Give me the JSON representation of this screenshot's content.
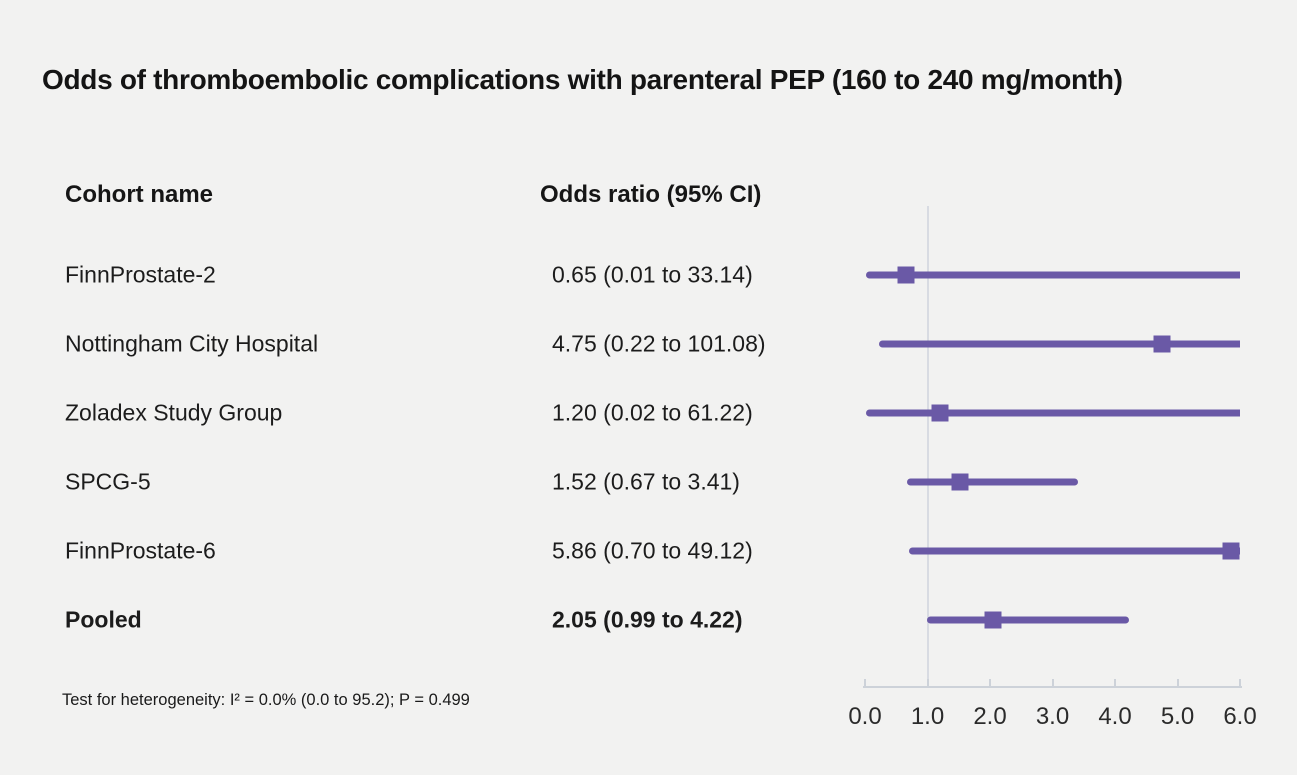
{
  "title": "Odds of thromboembolic complications with parenteral PEP (160 to 240 mg/month)",
  "columns": {
    "cohort": "Cohort name",
    "odds_ratio": "Odds ratio (95% CI)"
  },
  "footnote": "Test for heterogeneity: I² = 0.0% (0.0 to 95.2); P = 0.499",
  "colors": {
    "marker_purple": "#6a59a6",
    "refline_gray": "#d8dbe2",
    "axis_gray": "#cdd2d9",
    "background": "#f2f2f1",
    "text": "#191919"
  },
  "chart_data": {
    "type": "scatter",
    "subtype": "forest-plot",
    "title": "Odds of thromboembolic complications with parenteral PEP (160 to 240 mg/month)",
    "xlabel": "Odds ratio",
    "xlim": [
      0.0,
      6.0
    ],
    "ticks": [
      0.0,
      1.0,
      2.0,
      3.0,
      4.0,
      5.0,
      6.0
    ],
    "tick_labels": [
      "0.0",
      "1.0",
      "2.0",
      "3.0",
      "4.0",
      "5.0",
      "6.0"
    ],
    "refline": 1.0,
    "grid": false,
    "legend": "none",
    "rows": [
      {
        "label": "FinnProstate-2",
        "or": 0.65,
        "ci_low": 0.01,
        "ci_high": 33.14,
        "display": "0.65 (0.01 to 33.14)",
        "bold": false
      },
      {
        "label": "Nottingham City Hospital",
        "or": 4.75,
        "ci_low": 0.22,
        "ci_high": 101.08,
        "display": "4.75 (0.22 to 101.08)",
        "bold": false
      },
      {
        "label": "Zoladex Study Group",
        "or": 1.2,
        "ci_low": 0.02,
        "ci_high": 61.22,
        "display": "1.20 (0.02 to 61.22)",
        "bold": false
      },
      {
        "label": "SPCG-5",
        "or": 1.52,
        "ci_low": 0.67,
        "ci_high": 3.41,
        "display": "1.52 (0.67 to 3.41)",
        "bold": false
      },
      {
        "label": "FinnProstate-6",
        "or": 5.86,
        "ci_low": 0.7,
        "ci_high": 49.12,
        "display": "5.86 (0.70 to 49.12)",
        "bold": false
      },
      {
        "label": "Pooled",
        "or": 2.05,
        "ci_low": 0.99,
        "ci_high": 4.22,
        "display": "2.05 (0.99 to 4.22)",
        "bold": true
      }
    ]
  }
}
